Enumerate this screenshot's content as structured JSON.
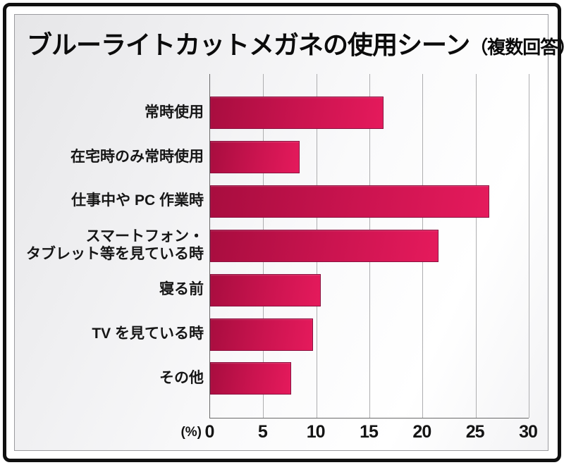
{
  "title": {
    "main": "ブルーライトカットメガネの使用シーン",
    "note": "（複数回答）"
  },
  "chart_data": {
    "type": "bar",
    "orientation": "horizontal",
    "title": "ブルーライトカットメガネの使用シーン（複数回答）",
    "categories": [
      "常時使用",
      "在宅時のみ常時使用",
      "仕事中や PC 作業時",
      "スマートフォン・\nタブレット等を見ている時",
      "寝る前",
      "TV を見ている時",
      "その他"
    ],
    "values": [
      16.3,
      8.4,
      26.3,
      21.5,
      10.4,
      9.7,
      7.6
    ],
    "unit": "%",
    "xlabel": "(%)",
    "xlim": [
      0,
      30
    ],
    "x_ticks": [
      0,
      5,
      10,
      15,
      20,
      25,
      30
    ],
    "grid": true,
    "legend": "none",
    "colors": {
      "bar_gradient_start": "#a80d3f",
      "bar_gradient_mid": "#cc1450",
      "bar_gradient_end": "#e51a5c",
      "bar_border": "#8a1240",
      "gridline": "#aeaeb0",
      "axis_line": "#6a6a6a",
      "frame_border": "#101010",
      "panel_border": "#9b9b9f"
    }
  }
}
